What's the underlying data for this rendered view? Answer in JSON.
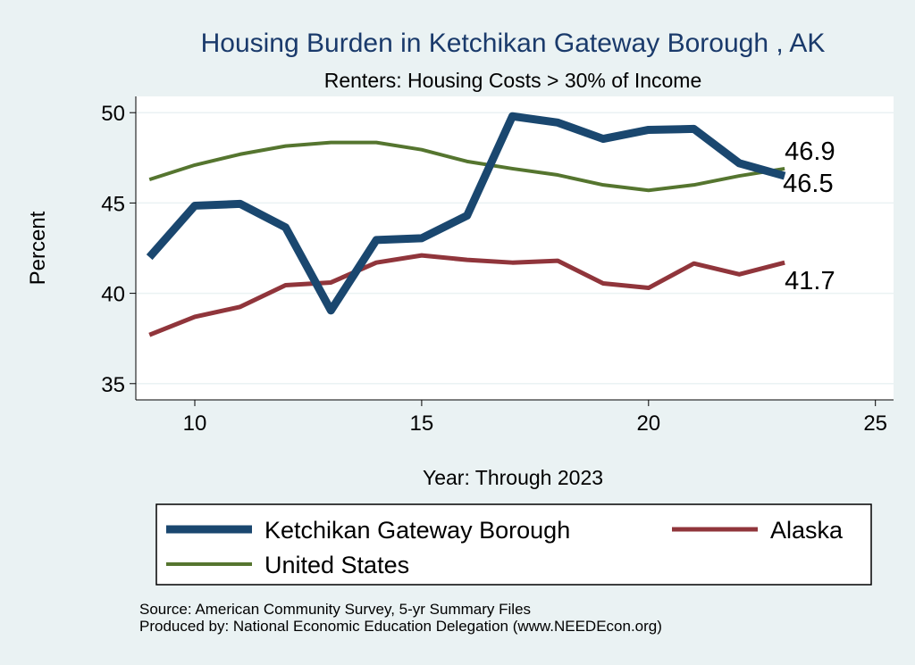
{
  "chart_data": {
    "type": "line",
    "title": "Housing Burden in Ketchikan Gateway Borough , AK",
    "subtitle": "Renters: Housing Costs > 30% of Income",
    "xlabel": "Year: Through 2023",
    "ylabel": "Percent",
    "xlim": [
      8.7,
      25.4
    ],
    "ylim": [
      34.1,
      50.9
    ],
    "xticks": [
      10,
      15,
      20,
      25
    ],
    "yticks": [
      35,
      40,
      45,
      50
    ],
    "grid": true,
    "legend_placement": "bottom",
    "x": [
      9,
      10,
      11,
      12,
      13,
      14,
      15,
      16,
      17,
      18,
      19,
      20,
      21,
      22,
      23
    ],
    "series": [
      {
        "name": "Ketchikan Gateway Borough",
        "color": "#1a476f",
        "width": 9,
        "values": [
          42.0,
          44.85,
          44.95,
          43.65,
          39.05,
          42.95,
          43.05,
          44.3,
          49.8,
          49.45,
          48.55,
          49.05,
          49.1,
          47.2,
          46.5
        ],
        "end_label": "46.5"
      },
      {
        "name": "Alaska",
        "color": "#90353b",
        "width": 5,
        "values": [
          37.7,
          38.7,
          39.25,
          40.45,
          40.6,
          41.7,
          42.1,
          41.85,
          41.7,
          41.8,
          40.55,
          40.3,
          41.65,
          41.05,
          41.7
        ],
        "end_label": "41.7"
      },
      {
        "name": "United States",
        "color": "#55752f",
        "width": 4,
        "values": [
          46.3,
          47.1,
          47.7,
          48.15,
          48.35,
          48.35,
          47.95,
          47.3,
          46.9,
          46.55,
          46.0,
          45.7,
          46.0,
          46.5,
          46.9
        ],
        "end_label": "46.9"
      }
    ],
    "notes": [
      "Source: American Community Survey, 5-yr Summary Files",
      "Produced by: National Economic Education Delegation (www.NEEDEcon.org)"
    ]
  }
}
